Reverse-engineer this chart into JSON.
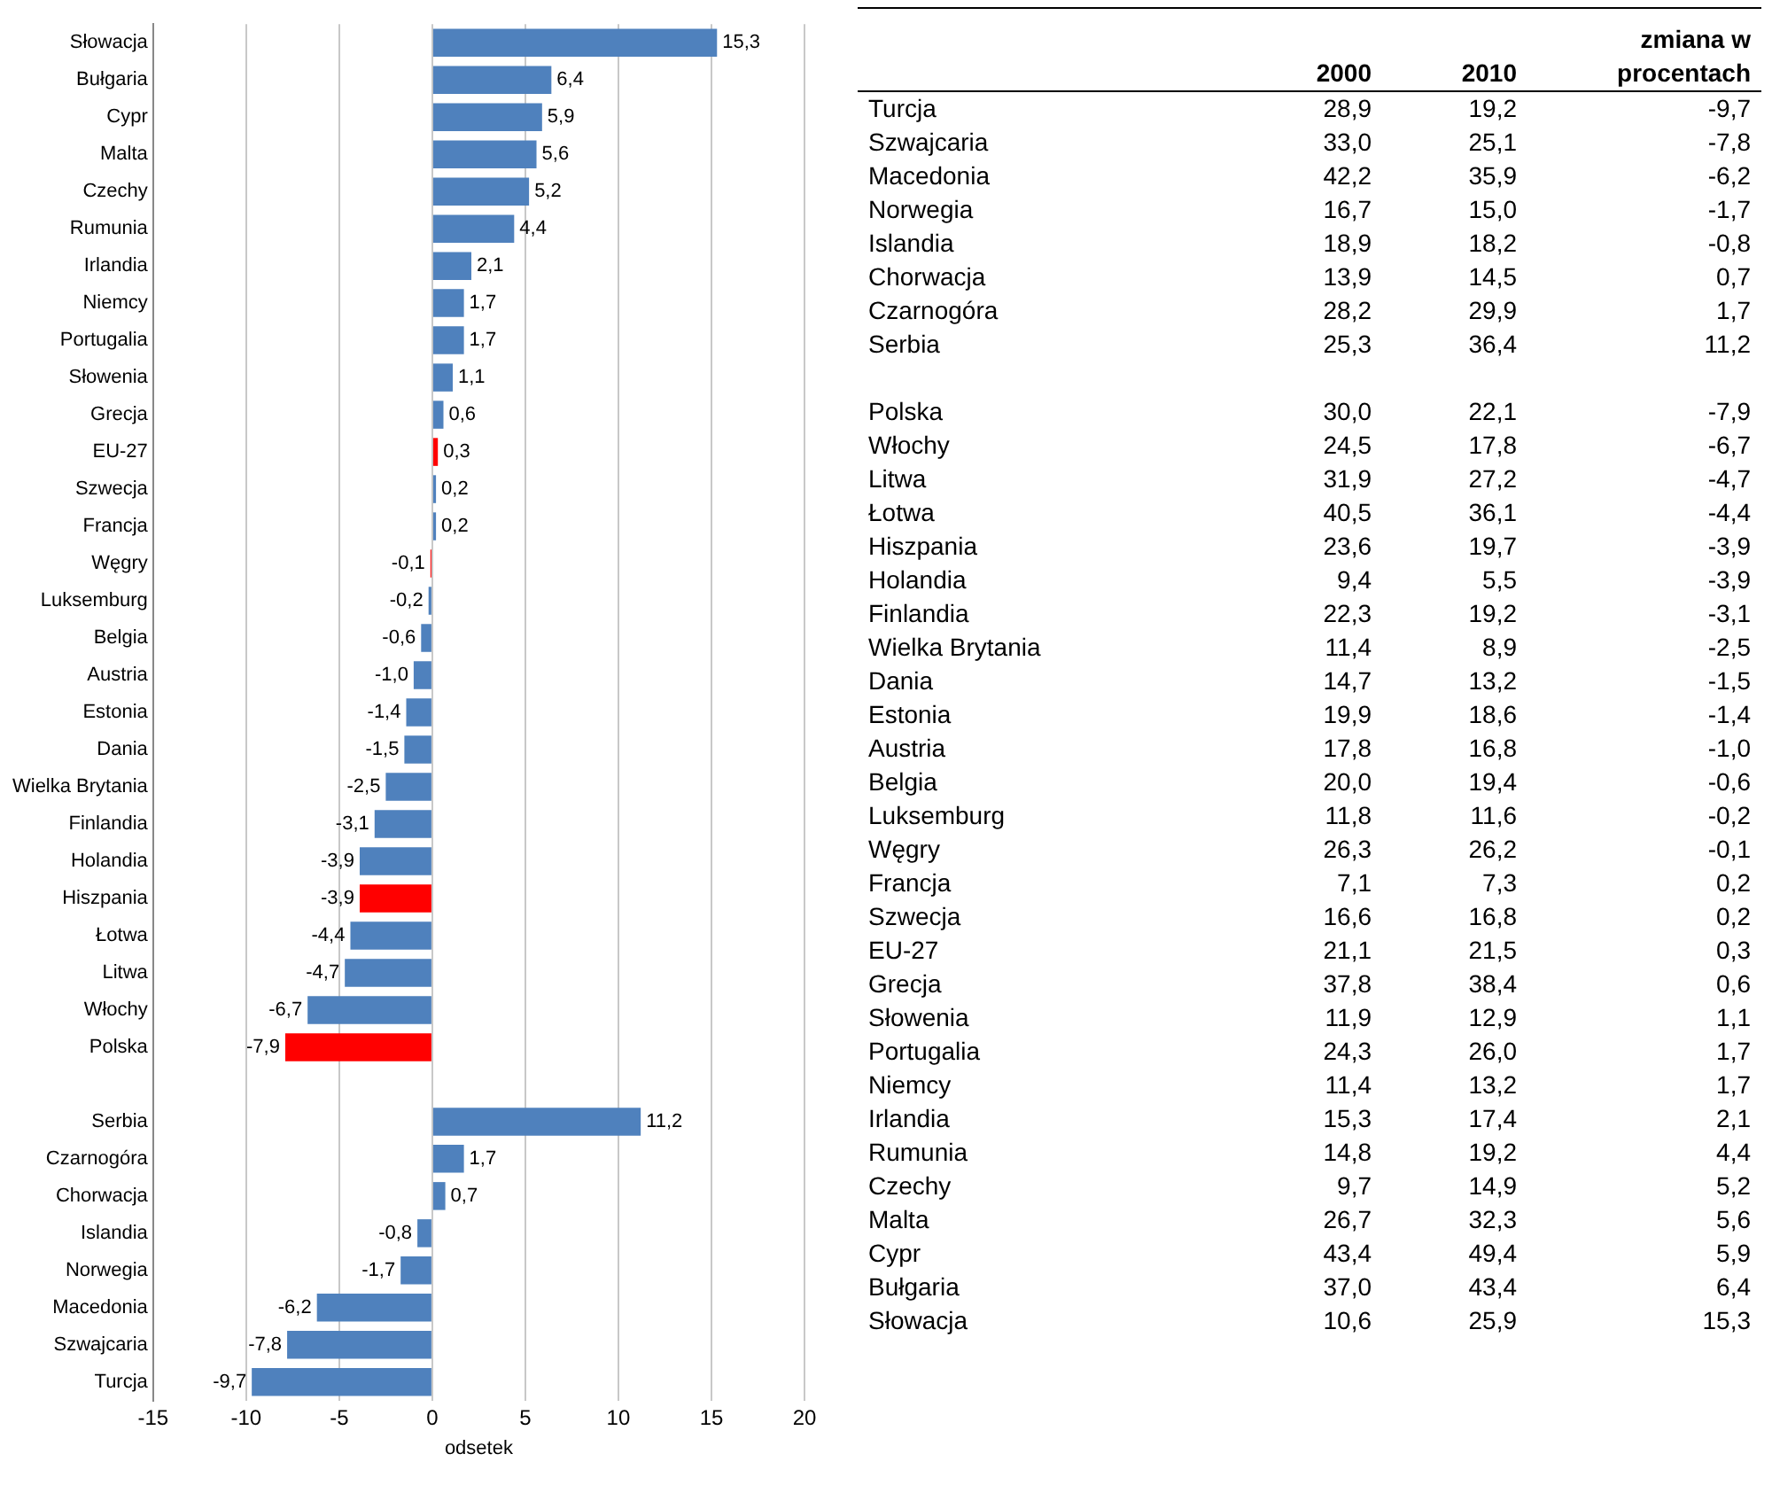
{
  "chart_data": [
    {
      "type": "bar",
      "orientation": "horizontal",
      "xlabel": "odsetek",
      "categories": [
        "Słowacja",
        "Bułgaria",
        "Cypr",
        "Malta",
        "Czechy",
        "Rumunia",
        "Irlandia",
        "Niemcy",
        "Portugalia",
        "Słowenia",
        "Grecja",
        "EU-27",
        "Szwecja",
        "Francja",
        "Węgry",
        "Luksemburg",
        "Belgia",
        "Austria",
        "Estonia",
        "Dania",
        "Wielka Brytania",
        "Finlandia",
        "Holandia",
        "Hiszpania",
        "Łotwa",
        "Litwa",
        "Włochy",
        "Polska",
        null,
        "Serbia",
        "Czarnogóra",
        "Chorwacja",
        "Islandia",
        "Norwegia",
        "Macedonia",
        "Szwajcaria",
        "Turcja"
      ],
      "values": [
        15.3,
        6.4,
        5.9,
        5.6,
        5.2,
        4.4,
        2.1,
        1.7,
        1.7,
        1.1,
        0.6,
        0.3,
        0.2,
        0.2,
        -0.1,
        -0.2,
        -0.6,
        -1.0,
        -1.4,
        -1.5,
        -2.5,
        -3.1,
        -3.9,
        -3.9,
        -4.4,
        -4.7,
        -6.7,
        -7.9,
        null,
        11.2,
        1.7,
        0.7,
        -0.8,
        -1.7,
        -6.2,
        -7.8,
        -9.7
      ],
      "value_labels": [
        "15,3",
        "6,4",
        "5,9",
        "5,6",
        "5,2",
        "4,4",
        "2,1",
        "1,7",
        "1,7",
        "1,1",
        "0,6",
        "0,3",
        "0,2",
        "0,2",
        "-0,1",
        "-0,2",
        "-0,6",
        "-1,0",
        "-1,4",
        "-1,5",
        "-2,5",
        "-3,1",
        "-3,9",
        "-3,9",
        "-4,4",
        "-4,7",
        "-6,7",
        "-7,9",
        null,
        "11,2",
        "1,7",
        "0,7",
        "-0,8",
        "-1,7",
        "-6,2",
        "-7,8",
        "-9,7"
      ],
      "colors": [
        "#4f81bd",
        "#4f81bd",
        "#4f81bd",
        "#4f81bd",
        "#4f81bd",
        "#4f81bd",
        "#4f81bd",
        "#4f81bd",
        "#4f81bd",
        "#4f81bd",
        "#4f81bd",
        "#ff0000",
        "#4f81bd",
        "#4f81bd",
        "#ff0000",
        "#4f81bd",
        "#4f81bd",
        "#4f81bd",
        "#4f81bd",
        "#4f81bd",
        "#4f81bd",
        "#4f81bd",
        "#4f81bd",
        "#ff0000",
        "#4f81bd",
        "#4f81bd",
        "#4f81bd",
        "#ff0000",
        "#4f81bd",
        "#4f81bd",
        "#4f81bd",
        "#4f81bd",
        "#4f81bd",
        "#4f81bd",
        "#4f81bd",
        "#4f81bd",
        "#4f81bd"
      ],
      "xlim": [
        -15,
        20
      ],
      "xticks": [
        -15,
        -10,
        -5,
        0,
        5,
        10,
        15,
        20
      ],
      "grid": "x"
    },
    {
      "type": "other",
      "categories": [
        "Turcja",
        "Szwajcaria",
        "Macedonia",
        "Norwegia",
        "Islandia",
        "Chorwacja",
        "Czarnogóra",
        "Serbia",
        null,
        "Polska",
        "Włochy",
        "Litwa",
        "Łotwa",
        "Hiszpania",
        "Holandia",
        "Finlandia",
        "Wielka Brytania",
        "Dania",
        "Estonia",
        "Austria",
        "Belgia",
        "Luksemburg",
        "Węgry",
        "Francja",
        "Szwecja",
        "EU-27",
        "Grecja",
        "Słowenia",
        "Portugalia",
        "Niemcy",
        "Irlandia",
        "Rumunia",
        "Czechy",
        "Malta",
        "Cypr",
        "Bułgaria",
        "Słowacja"
      ],
      "series": [
        {
          "name": "2000",
          "values": [
            28.9,
            33.0,
            42.2,
            16.7,
            18.9,
            13.9,
            28.2,
            25.3,
            null,
            30.0,
            24.5,
            31.9,
            40.5,
            23.6,
            9.4,
            22.3,
            11.4,
            14.7,
            19.9,
            17.8,
            20.0,
            11.8,
            26.3,
            7.1,
            16.6,
            21.1,
            37.8,
            11.9,
            24.3,
            11.4,
            15.3,
            14.8,
            9.7,
            26.7,
            43.4,
            37.0,
            10.6
          ],
          "value_labels": [
            "28,9",
            "33,0",
            "42,2",
            "16,7",
            "18,9",
            "13,9",
            "28,2",
            "25,3",
            null,
            "30,0",
            "24,5",
            "31,9",
            "40,5",
            "23,6",
            "9,4",
            "22,3",
            "11,4",
            "14,7",
            "19,9",
            "17,8",
            "20,0",
            "11,8",
            "26,3",
            "7,1",
            "16,6",
            "21,1",
            "37,8",
            "11,9",
            "24,3",
            "11,4",
            "15,3",
            "14,8",
            "9,7",
            "26,7",
            "43,4",
            "37,0",
            "10,6"
          ]
        },
        {
          "name": "2010",
          "values": [
            19.2,
            25.1,
            35.9,
            15.0,
            18.2,
            14.5,
            29.9,
            36.4,
            null,
            22.1,
            17.8,
            27.2,
            36.1,
            19.7,
            5.5,
            19.2,
            8.9,
            13.2,
            18.6,
            16.8,
            19.4,
            11.6,
            26.2,
            7.3,
            16.8,
            21.5,
            38.4,
            12.9,
            26.0,
            13.2,
            17.4,
            19.2,
            14.9,
            32.3,
            49.4,
            43.4,
            25.9
          ],
          "value_labels": [
            "19,2",
            "25,1",
            "35,9",
            "15,0",
            "18,2",
            "14,5",
            "29,9",
            "36,4",
            null,
            "22,1",
            "17,8",
            "27,2",
            "36,1",
            "19,7",
            "5,5",
            "19,2",
            "8,9",
            "13,2",
            "18,6",
            "16,8",
            "19,4",
            "11,6",
            "26,2",
            "7,3",
            "16,8",
            "21,5",
            "38,4",
            "12,9",
            "26,0",
            "13,2",
            "17,4",
            "19,2",
            "14,9",
            "32,3",
            "49,4",
            "43,4",
            "25,9"
          ]
        },
        {
          "name": "zmiana w procentach",
          "values": [
            -9.7,
            -7.8,
            -6.2,
            -1.7,
            -0.8,
            0.7,
            1.7,
            11.2,
            null,
            -7.9,
            -6.7,
            -4.7,
            -4.4,
            -3.9,
            -3.9,
            -3.1,
            -2.5,
            -1.5,
            -1.4,
            -1.0,
            -0.6,
            -0.2,
            -0.1,
            0.2,
            0.2,
            0.3,
            0.6,
            1.1,
            1.7,
            1.7,
            2.1,
            4.4,
            5.2,
            5.6,
            5.9,
            6.4,
            15.3
          ],
          "value_labels": [
            "-9,7",
            "-7,8",
            "-6,2",
            "-1,7",
            "-0,8",
            "0,7",
            "1,7",
            "11,2",
            null,
            "-7,9",
            "-6,7",
            "-4,7",
            "-4,4",
            "-3,9",
            "-3,9",
            "-3,1",
            "-2,5",
            "-1,5",
            "-1,4",
            "-1,0",
            "-0,6",
            "-0,2",
            "-0,1",
            "0,2",
            "0,2",
            "0,3",
            "0,6",
            "1,1",
            "1,7",
            "1,7",
            "2,1",
            "4,4",
            "5,2",
            "5,6",
            "5,9",
            "6,4",
            "15,3"
          ]
        }
      ]
    }
  ]
}
